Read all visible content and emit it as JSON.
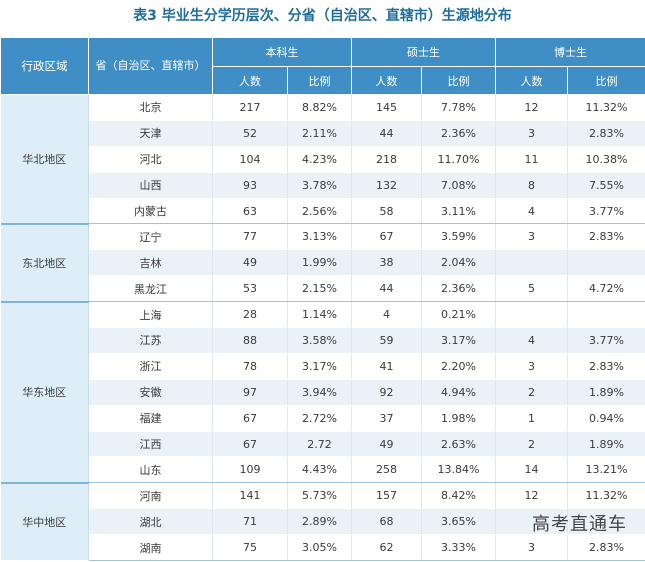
{
  "title": "表3  毕业生分学历层次、分省（自治区、直辖市）生源地分布",
  "headers": {
    "region": "行政区域",
    "province": "省（自治区、直辖市）",
    "bachelor": "本科生",
    "master": "硕士生",
    "doctor": "博士生",
    "count": "人数",
    "ratio": "比例"
  },
  "groups": [
    {
      "region": "华北地区",
      "rows": [
        [
          "北京",
          "217",
          "8.82%",
          "145",
          "7.78%",
          "12",
          "11.32%"
        ],
        [
          "天津",
          "52",
          "2.11%",
          "44",
          "2.36%",
          "3",
          "2.83%"
        ],
        [
          "河北",
          "104",
          "4.23%",
          "218",
          "11.70%",
          "11",
          "10.38%"
        ],
        [
          "山西",
          "93",
          "3.78%",
          "132",
          "7.08%",
          "8",
          "7.55%"
        ],
        [
          "内蒙古",
          "63",
          "2.56%",
          "58",
          "3.11%",
          "4",
          "3.77%"
        ]
      ]
    },
    {
      "region": "东北地区",
      "rows": [
        [
          "辽宁",
          "77",
          "3.13%",
          "67",
          "3.59%",
          "3",
          "2.83%"
        ],
        [
          "吉林",
          "49",
          "1.99%",
          "38",
          "2.04%",
          "",
          ""
        ],
        [
          "黑龙江",
          "53",
          "2.15%",
          "44",
          "2.36%",
          "5",
          "4.72%"
        ]
      ]
    },
    {
      "region": "华东地区",
      "rows": [
        [
          "上海",
          "28",
          "1.14%",
          "4",
          "0.21%",
          "",
          ""
        ],
        [
          "江苏",
          "88",
          "3.58%",
          "59",
          "3.17%",
          "4",
          "3.77%"
        ],
        [
          "浙江",
          "78",
          "3.17%",
          "41",
          "2.20%",
          "3",
          "2.83%"
        ],
        [
          "安徽",
          "97",
          "3.94%",
          "92",
          "4.94%",
          "2",
          "1.89%"
        ],
        [
          "福建",
          "67",
          "2.72%",
          "37",
          "1.98%",
          "1",
          "0.94%"
        ],
        [
          "江西",
          "67",
          "2.72",
          "49",
          "2.63%",
          "2",
          "1.89%"
        ],
        [
          "山东",
          "109",
          "4.43%",
          "258",
          "13.84%",
          "14",
          "13.21%"
        ]
      ]
    },
    {
      "region": "华中地区",
      "rows": [
        [
          "河南",
          "141",
          "5.73%",
          "157",
          "8.42%",
          "12",
          "11.32%"
        ],
        [
          "湖北",
          "71",
          "2.89%",
          "68",
          "3.65%",
          "",
          ""
        ],
        [
          "湖南",
          "75",
          "3.05%",
          "62",
          "3.33%",
          "3",
          "2.83%"
        ]
      ]
    }
  ],
  "watermark": "高考直通车",
  "colors": {
    "header_bg": "#3f8fc6",
    "title": "#1f6d9c",
    "region_bg": "#ddeef9",
    "row_alt": "#eaf2f8"
  }
}
